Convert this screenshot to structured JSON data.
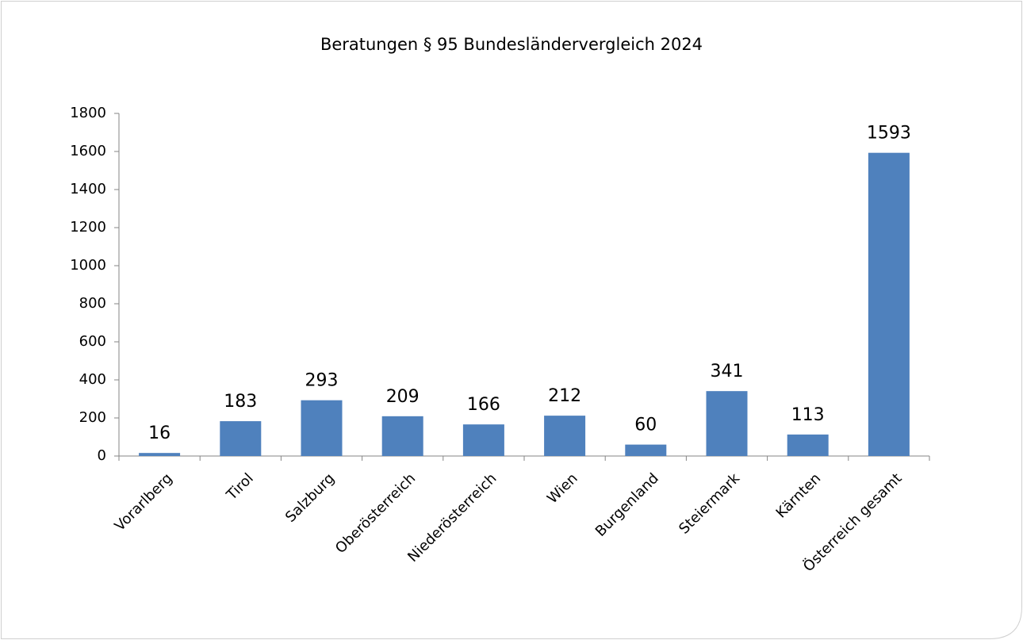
{
  "chart_data": {
    "type": "bar",
    "title": "Beratungen § 95 Bundesländervergleich 2024",
    "categories": [
      "Vorarlberg",
      "Tirol",
      "Salzburg",
      "Oberösterreich",
      "Niederösterreich",
      "Wien",
      "Burgenland",
      "Steiermark",
      "Kärnten",
      "Österreich gesamt"
    ],
    "values": [
      16,
      183,
      293,
      209,
      166,
      212,
      60,
      341,
      113,
      1593
    ],
    "color": "#4f81bd",
    "ylim": [
      0,
      1800
    ],
    "yticks": [
      0,
      200,
      400,
      600,
      800,
      1000,
      1200,
      1400,
      1600,
      1800
    ],
    "grid": false
  }
}
